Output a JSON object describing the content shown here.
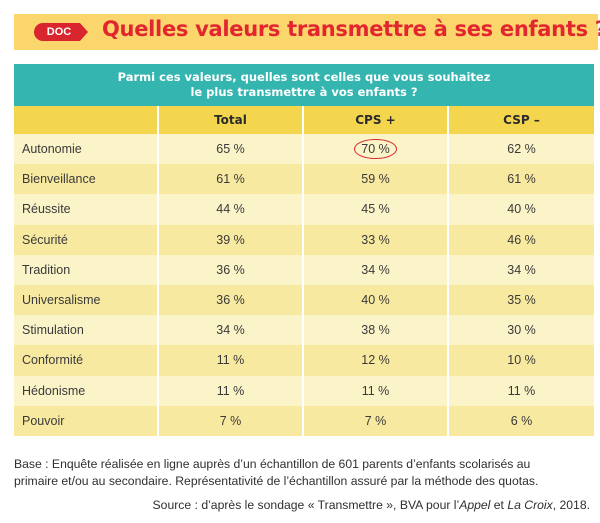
{
  "header": {
    "badge": "DOC",
    "title": "Quelles valeurs transmettre à ses enfants ?"
  },
  "table": {
    "caption_line1": "Parmi ces valeurs, quelles sont celles que vous souhaitez",
    "caption_line2": "le plus transmettre à vos enfants ?",
    "columns": [
      "",
      "Total",
      "CPS +",
      "CSP –"
    ],
    "rows": [
      {
        "label": "Autonomie",
        "total": "65 %",
        "cps": "70 %",
        "csp": "62 %",
        "cps_circled": true
      },
      {
        "label": "Bienveillance",
        "total": "61 %",
        "cps": "59 %",
        "csp": "61 %"
      },
      {
        "label": "Réussite",
        "total": "44 %",
        "cps": "45 %",
        "csp": "40 %"
      },
      {
        "label": "Sécurité",
        "total": "39 %",
        "cps": "33 %",
        "csp": "46 %"
      },
      {
        "label": "Tradition",
        "total": "36 %",
        "cps": "34 %",
        "csp": "34 %"
      },
      {
        "label": "Universalisme",
        "total": "36 %",
        "cps": "40 %",
        "csp": "35 %"
      },
      {
        "label": "Stimulation",
        "total": "34 %",
        "cps": "38 %",
        "csp": "30 %"
      },
      {
        "label": "Conformité",
        "total": "11 %",
        "cps": "12 %",
        "csp": "10 %"
      },
      {
        "label": "Hédonisme",
        "total": "11 %",
        "cps": "11 %",
        "csp": "11 %"
      },
      {
        "label": "Pouvoir",
        "total": "7 %",
        "cps": "7 %",
        "csp": "6 %"
      }
    ]
  },
  "notes": {
    "base_line1": "Base : Enquête réalisée en ligne auprès d’un échantillon de 601 parents d’enfants scolarisés au",
    "base_line2": "primaire et/ou au secondaire. Représentativité de l’échantillon assuré par la méthode des quotas.",
    "source_prefix": "Source : d’après le sondage « Transmettre », BVA pour l’",
    "source_italic1": "Appel",
    "source_and": " et ",
    "source_italic2": "La Croix",
    "source_suffix": ", 2018."
  },
  "colors": {
    "title_red": "#e2262f",
    "header_yellow": "#fbd66c",
    "caption_teal": "#35b5b0",
    "column_header_yellow": "#f3d64e",
    "row_light": "#fbf4c9",
    "row_dark": "#f8e9a0"
  }
}
